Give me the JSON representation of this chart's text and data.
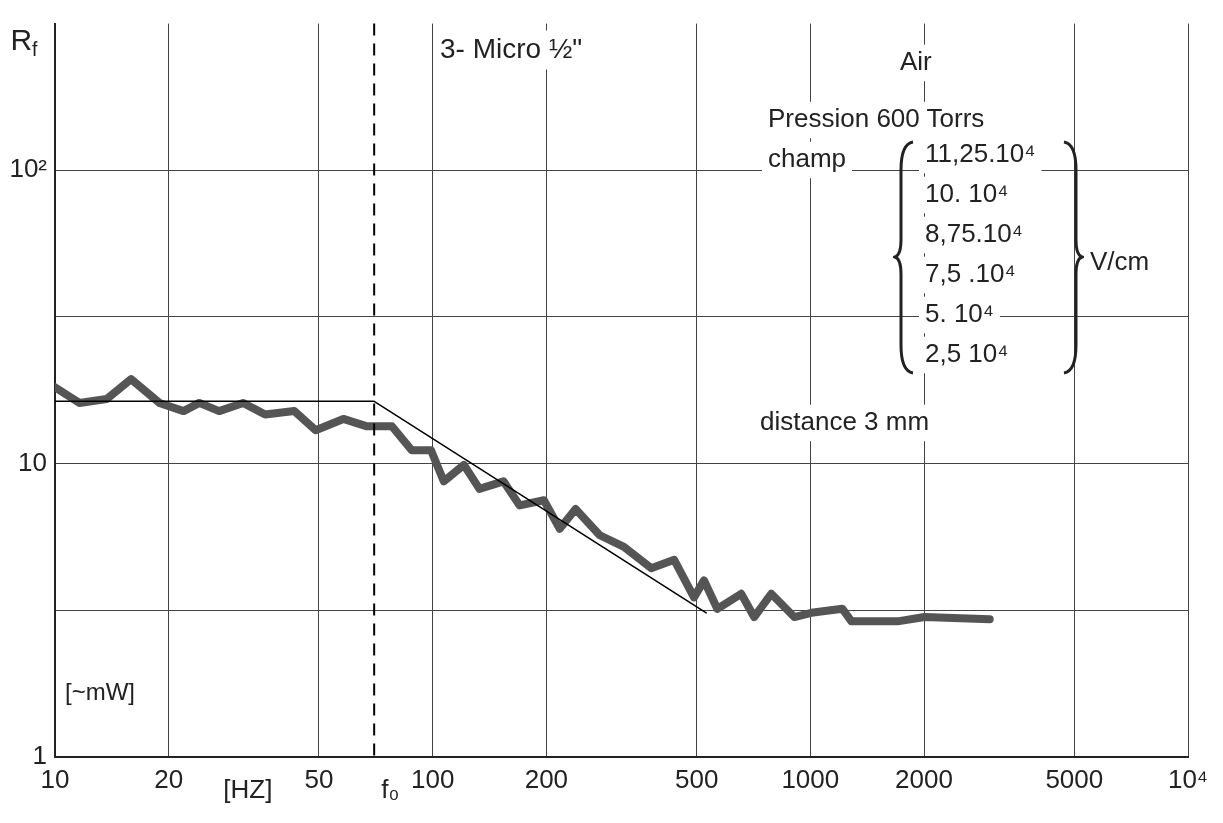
{
  "chart_data": {
    "type": "line",
    "xlabel": "[HZ]",
    "ylabel": "R$_{f}$",
    "log": "xy",
    "grid": true,
    "marker": "none",
    "xlim": [
      10,
      10000
    ],
    "xticks": [
      10,
      20,
      50,
      100,
      200,
      500,
      1000,
      2000,
      5000,
      {
        "value": 10000,
        "label": "10⁴"
      }
    ],
    "ylim": [
      1,
      316
    ],
    "yticks": [
      1,
      {
        "value": 3.16,
        "label": null
      },
      10,
      {
        "value": 31.6,
        "label": null
      },
      {
        "value": 100,
        "label": "10²"
      }
    ],
    "series": [
      {
        "color": "#555555",
        "x": [
          10,
          11.6,
          13.7,
          15.9,
          18.9,
          21.9,
          24.1,
          27.2,
          31.5,
          36,
          43,
          49,
          58,
          67,
          78,
          88,
          99,
          107,
          121,
          133,
          154,
          170,
          197,
          217,
          239,
          277,
          321,
          379,
          436,
          492,
          523,
          567,
          656,
          710,
          788,
          907,
          1006,
          1216,
          1285,
          1702,
          2005,
          2985
        ],
        "values": [
          18.2,
          16.1,
          16.6,
          19.4,
          16.1,
          15.1,
          16.1,
          15.1,
          16.1,
          14.7,
          15.1,
          13.0,
          14.2,
          13.4,
          13.4,
          11.1,
          11.1,
          8.7,
          9.9,
          8.2,
          8.7,
          7.2,
          7.5,
          6.0,
          7.0,
          5.7,
          5.2,
          4.4,
          4.7,
          3.5,
          4.0,
          3.2,
          3.6,
          3.0,
          3.6,
          3.0,
          3.1,
          3.2,
          2.9,
          2.9,
          3.0,
          2.95
        ]
      },
      {
        "type": "line",
        "color": "#000000",
        "x": [
          10,
          70,
          530
        ],
        "values": [
          16.3,
          16.3,
          3.1
        ]
      }
    ],
    "ref_lines": [
      {
        "axis": "x",
        "value": 70,
        "label": "f₀",
        "line_style": "dashed",
        "color": "#000000"
      }
    ],
    "annotations": [
      "[~mW]",
      "3- Micro ½\"",
      "Air",
      "Pression 600 Torrs",
      "champ",
      "11,25.10⁴",
      "10. 10⁴",
      "8,75.10⁴",
      "7,5 .10⁴",
      "5. 10⁴",
      "2,5 10⁴",
      "V/cm",
      "distance 3 mm"
    ]
  }
}
